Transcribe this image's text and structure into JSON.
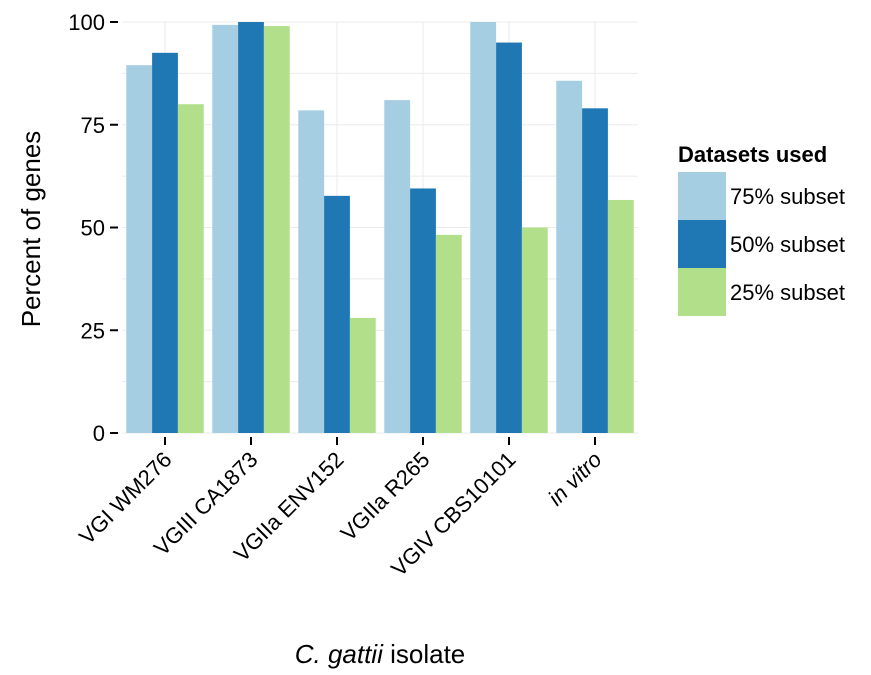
{
  "chart_data": {
    "type": "bar",
    "categories": [
      "VGI WM276",
      "VGIII CA1873",
      "VGIIa ENV152",
      "VGIIa R265",
      "VGIV CBS10101",
      "in vitro"
    ],
    "category_italic": [
      false,
      false,
      false,
      false,
      false,
      true
    ],
    "series": [
      {
        "name": "75% subset",
        "color": "#a6cee3",
        "values": [
          89.5,
          99.3,
          78.5,
          81,
          100,
          85.7
        ]
      },
      {
        "name": "50% subset",
        "color": "#1f78b4",
        "values": [
          92.5,
          100,
          57.7,
          59.5,
          95,
          79
        ]
      },
      {
        "name": "25% subset",
        "color": "#b2df8a",
        "values": [
          80,
          99,
          28,
          48.2,
          50,
          56.7
        ]
      }
    ],
    "ylabel": "Percent of genes",
    "xlabel_italic": "C. gattii",
    "xlabel_rest": " isolate",
    "yticks": [
      0,
      25,
      50,
      75,
      100
    ],
    "ylim": [
      0,
      100
    ],
    "grid": true,
    "legend": {
      "title": "Datasets used",
      "position": "right"
    }
  }
}
